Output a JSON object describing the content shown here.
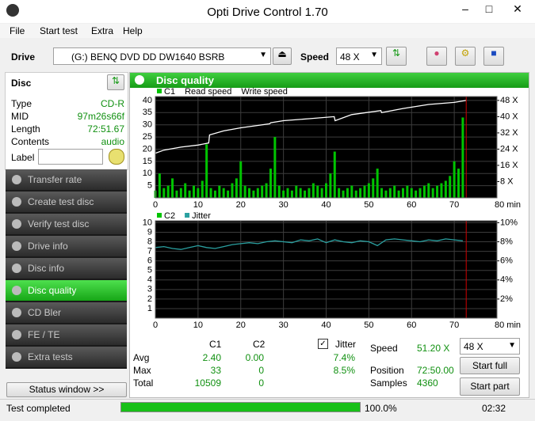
{
  "window": {
    "title": "Opti Drive Control 1.70"
  },
  "menu": [
    "File",
    "Start test",
    "Extra",
    "Help"
  ],
  "toolbar": {
    "drive_label": "Drive",
    "drive": "(G:)  BENQ DVD DD DW1640 BSRB",
    "speed_label": "Speed",
    "speed": "48 X"
  },
  "disc": {
    "title": "Disc",
    "rows": [
      [
        "Type",
        "CD-R"
      ],
      [
        "MID",
        "97m26s66f"
      ],
      [
        "Length",
        "72:51.67"
      ],
      [
        "Contents",
        "audio"
      ]
    ],
    "label": "Label"
  },
  "nav": [
    "Transfer rate",
    "Create test disc",
    "Verify test disc",
    "Drive info",
    "Disc info",
    "Disc quality",
    "CD Bler",
    "FE / TE",
    "Extra tests"
  ],
  "nav_active": 5,
  "status_window": "Status window >>",
  "panel": {
    "title": "Disc quality"
  },
  "chart_data": [
    {
      "type": "bar",
      "grid": true,
      "marker_x": 72.8,
      "marker_color": "#d00000",
      "xlim": [
        0,
        80
      ],
      "xticks": [
        0,
        10,
        20,
        30,
        40,
        50,
        60,
        70,
        {
          "value": 80,
          "label": "80 min"
        }
      ],
      "ylim": [
        0,
        41.6
      ],
      "yticks": [
        5,
        10,
        15,
        20,
        25,
        30,
        35,
        40
      ],
      "y2lim": [
        0,
        49.9
      ],
      "y2ticks": [
        {
          "value": 8,
          "label": "8 X"
        },
        {
          "value": 16,
          "label": "16 X"
        },
        {
          "value": 24,
          "label": "24 X"
        },
        {
          "value": 32,
          "label": "32 X"
        },
        {
          "value": 40,
          "label": "40 X"
        },
        {
          "value": 48,
          "label": "48 X"
        }
      ],
      "series": [
        {
          "name": "C1",
          "kind": "bar",
          "color": "#00c400",
          "swatch": true,
          "x": [
            0,
            1,
            2,
            3,
            4,
            5,
            6,
            7,
            8,
            9,
            10,
            11,
            12,
            13,
            14,
            15,
            16,
            17,
            18,
            19,
            20,
            21,
            22,
            23,
            24,
            25,
            26,
            27,
            28,
            29,
            30,
            31,
            32,
            33,
            34,
            35,
            36,
            37,
            38,
            39,
            40,
            41,
            42,
            43,
            44,
            45,
            46,
            47,
            48,
            49,
            50,
            51,
            52,
            53,
            54,
            55,
            56,
            57,
            58,
            59,
            60,
            61,
            62,
            63,
            64,
            65,
            66,
            67,
            68,
            69,
            70,
            71,
            72
          ],
          "values": [
            3,
            10,
            4,
            5,
            8,
            3,
            4,
            6,
            3,
            5,
            4,
            7,
            22,
            4,
            3,
            5,
            4,
            3,
            6,
            8,
            15,
            5,
            4,
            3,
            4,
            5,
            6,
            12,
            25,
            5,
            3,
            4,
            3,
            5,
            4,
            3,
            4,
            6,
            5,
            4,
            6,
            10,
            19,
            4,
            3,
            4,
            5,
            3,
            4,
            5,
            6,
            8,
            12,
            4,
            3,
            4,
            5,
            3,
            4,
            5,
            4,
            3,
            4,
            5,
            6,
            4,
            5,
            6,
            7,
            9,
            15,
            12,
            33
          ]
        },
        {
          "name": "Read speed",
          "kind": "line",
          "axis": "y2",
          "color": "#ffffff",
          "swatch": false,
          "x": [
            0,
            2,
            6,
            10,
            12.5,
            12.7,
            16,
            20,
            26.8,
            27,
            30,
            36,
            41.9,
            42.1,
            46,
            52.8,
            53,
            58,
            64,
            70,
            72.8
          ],
          "values": [
            22,
            23.5,
            25,
            26,
            27,
            31,
            33,
            34.5,
            36.5,
            37,
            38,
            39,
            40,
            38,
            41,
            43,
            42,
            44,
            46,
            47,
            48
          ]
        },
        {
          "name": "Write speed",
          "kind": "line",
          "axis": "y2",
          "color": "#ff4040",
          "swatch": false,
          "x": [],
          "values": []
        }
      ]
    },
    {
      "type": "bar",
      "grid": true,
      "marker_x": 72.8,
      "marker_color": "#d00000",
      "xlim": [
        0,
        80
      ],
      "xticks": [
        0,
        10,
        20,
        30,
        40,
        50,
        60,
        70,
        {
          "value": 80,
          "label": "80 min"
        }
      ],
      "ylim": [
        0,
        10.2
      ],
      "yticks": [
        1,
        2,
        3,
        4,
        5,
        6,
        7,
        8,
        9,
        10
      ],
      "y2lim": [
        0,
        10.2
      ],
      "y2ticks": [
        {
          "value": 2,
          "label": "2%"
        },
        {
          "value": 4,
          "label": "4%"
        },
        {
          "value": 6,
          "label": "6%"
        },
        {
          "value": 8,
          "label": "8%"
        },
        {
          "value": 10,
          "label": "10%"
        }
      ],
      "series": [
        {
          "name": "C2",
          "kind": "bar",
          "color": "#00c400",
          "swatch": true,
          "x": [
            0,
            36,
            72
          ],
          "values": [
            0,
            0,
            0
          ]
        },
        {
          "name": "Jitter",
          "kind": "line",
          "axis": "y2",
          "color": "#2aa0a0",
          "swatch": true,
          "x": [
            0,
            2,
            4,
            6,
            8,
            10,
            12,
            14,
            16,
            18,
            20,
            22,
            24,
            26,
            28,
            30,
            32,
            34,
            36,
            38,
            40,
            42,
            44,
            46,
            48,
            50,
            52,
            54,
            56,
            58,
            60,
            62,
            64,
            66,
            68,
            70,
            72
          ],
          "values": [
            7.4,
            7.5,
            7.3,
            7.2,
            7.4,
            7.6,
            7.4,
            7.3,
            7.5,
            7.7,
            7.8,
            7.9,
            7.8,
            8.0,
            8.1,
            8.0,
            7.9,
            8.2,
            8.1,
            8.3,
            7.9,
            8.2,
            8.0,
            7.9,
            8.1,
            8.0,
            7.6,
            8.2,
            8.3,
            8.2,
            8.1,
            8.0,
            8.2,
            8.1,
            8.3,
            8.2,
            8.1
          ]
        }
      ]
    }
  ],
  "stats": {
    "headers": [
      "C1",
      "C2"
    ],
    "jitter": "Jitter",
    "rows": [
      [
        "Avg",
        "2.40",
        "0.00",
        "7.4%"
      ],
      [
        "Max",
        "33",
        "0",
        "8.5%"
      ],
      [
        "Total",
        "10509",
        "0"
      ]
    ]
  },
  "run": {
    "speed_label": "Speed",
    "speed": "51.20 X",
    "speed_select": "48 X",
    "position_label": "Position",
    "position": "72:50.00",
    "samples_label": "Samples",
    "samples": "4360",
    "start_full": "Start full",
    "start_part": "Start part"
  },
  "status": {
    "text": "Test completed",
    "progress": "100.0%",
    "time": "02:32"
  }
}
